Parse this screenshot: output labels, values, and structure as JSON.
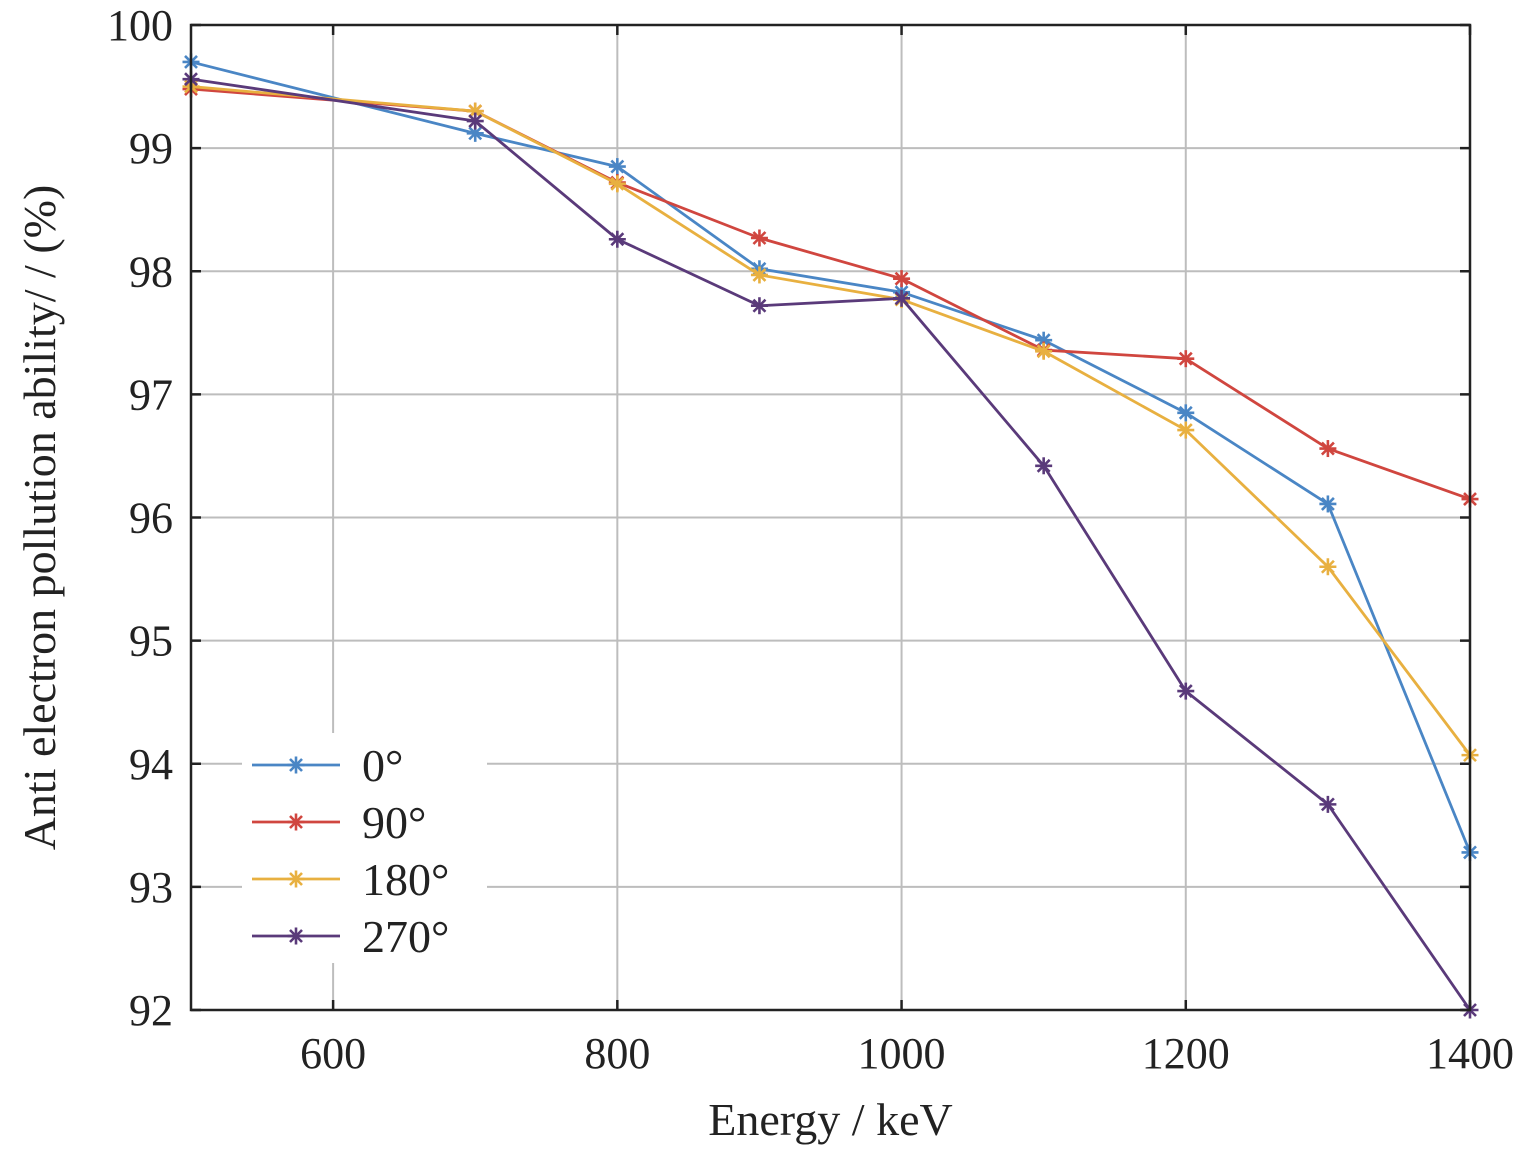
{
  "chart_data": {
    "type": "line",
    "title": "",
    "xlabel": "Energy / keV",
    "ylabel": "Anti electron pollution ability/ / (%)",
    "xlim": [
      500,
      1400
    ],
    "ylim": [
      92,
      100
    ],
    "xticks": [
      600,
      800,
      1000,
      1200,
      1400
    ],
    "yticks": [
      92,
      93,
      94,
      95,
      96,
      97,
      98,
      99,
      100
    ],
    "grid": true,
    "legend_position": "bottom-left",
    "x": [
      500,
      700,
      800,
      900,
      1000,
      1100,
      1200,
      1300,
      1400
    ],
    "series": [
      {
        "name": "0°",
        "color": "#4a86c5",
        "marker": "asterisk",
        "values": [
          99.7,
          99.12,
          98.85,
          98.02,
          97.83,
          97.44,
          96.85,
          96.11,
          93.28
        ]
      },
      {
        "name": "90°",
        "color": "#d0463f",
        "marker": "asterisk",
        "values": [
          99.48,
          99.3,
          98.72,
          98.27,
          97.94,
          97.36,
          97.29,
          96.56,
          96.15
        ]
      },
      {
        "name": "180°",
        "color": "#e8b040",
        "marker": "asterisk",
        "values": [
          99.5,
          99.3,
          98.71,
          97.97,
          97.77,
          97.35,
          96.71,
          95.6,
          94.07
        ]
      },
      {
        "name": "270°",
        "color": "#5a3a7a",
        "marker": "asterisk",
        "values": [
          99.56,
          99.22,
          98.26,
          97.72,
          97.78,
          96.42,
          94.59,
          93.67,
          92.0
        ]
      }
    ]
  }
}
